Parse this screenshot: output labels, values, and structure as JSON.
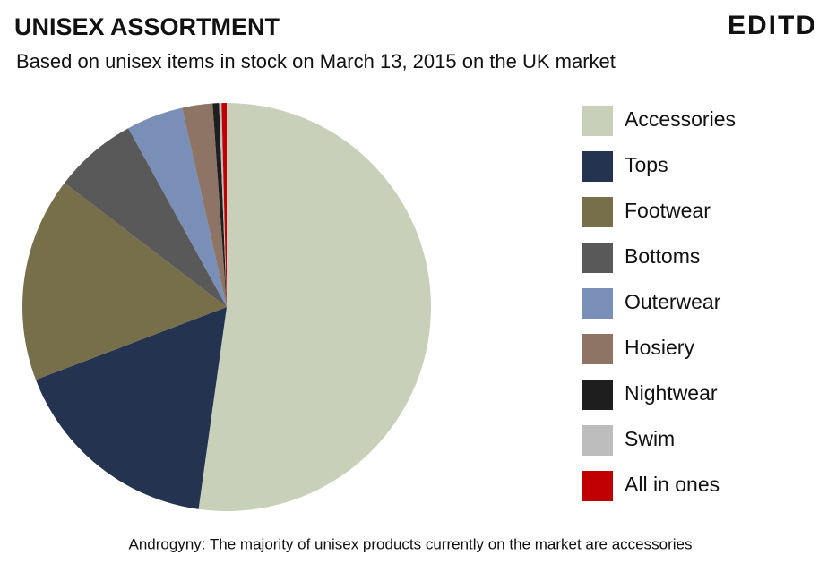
{
  "chart_data": {
    "type": "pie",
    "title": "UNISEX ASSORTMENT",
    "subtitle": "Based on unisex items in stock on March 13, 2015 on the UK market",
    "brand": "EDITD",
    "caption": "Androgyny: The majority of unisex products currently on the market are accessories",
    "categories": [
      "Accessories",
      "Tops",
      "Footwear",
      "Bottoms",
      "Outerwear",
      "Hosiery",
      "Nightwear",
      "Swim",
      "All in ones"
    ],
    "values": [
      52.2,
      17,
      16.2,
      6.6,
      4.5,
      2.4,
      0.5,
      0.2,
      0.4
    ],
    "colors": [
      "#c8d0b9",
      "#233350",
      "#766f4a",
      "#595959",
      "#7a8fb8",
      "#8e7465",
      "#1e1e1e",
      "#bdbdbd",
      "#c00000"
    ],
    "legend": "right"
  }
}
